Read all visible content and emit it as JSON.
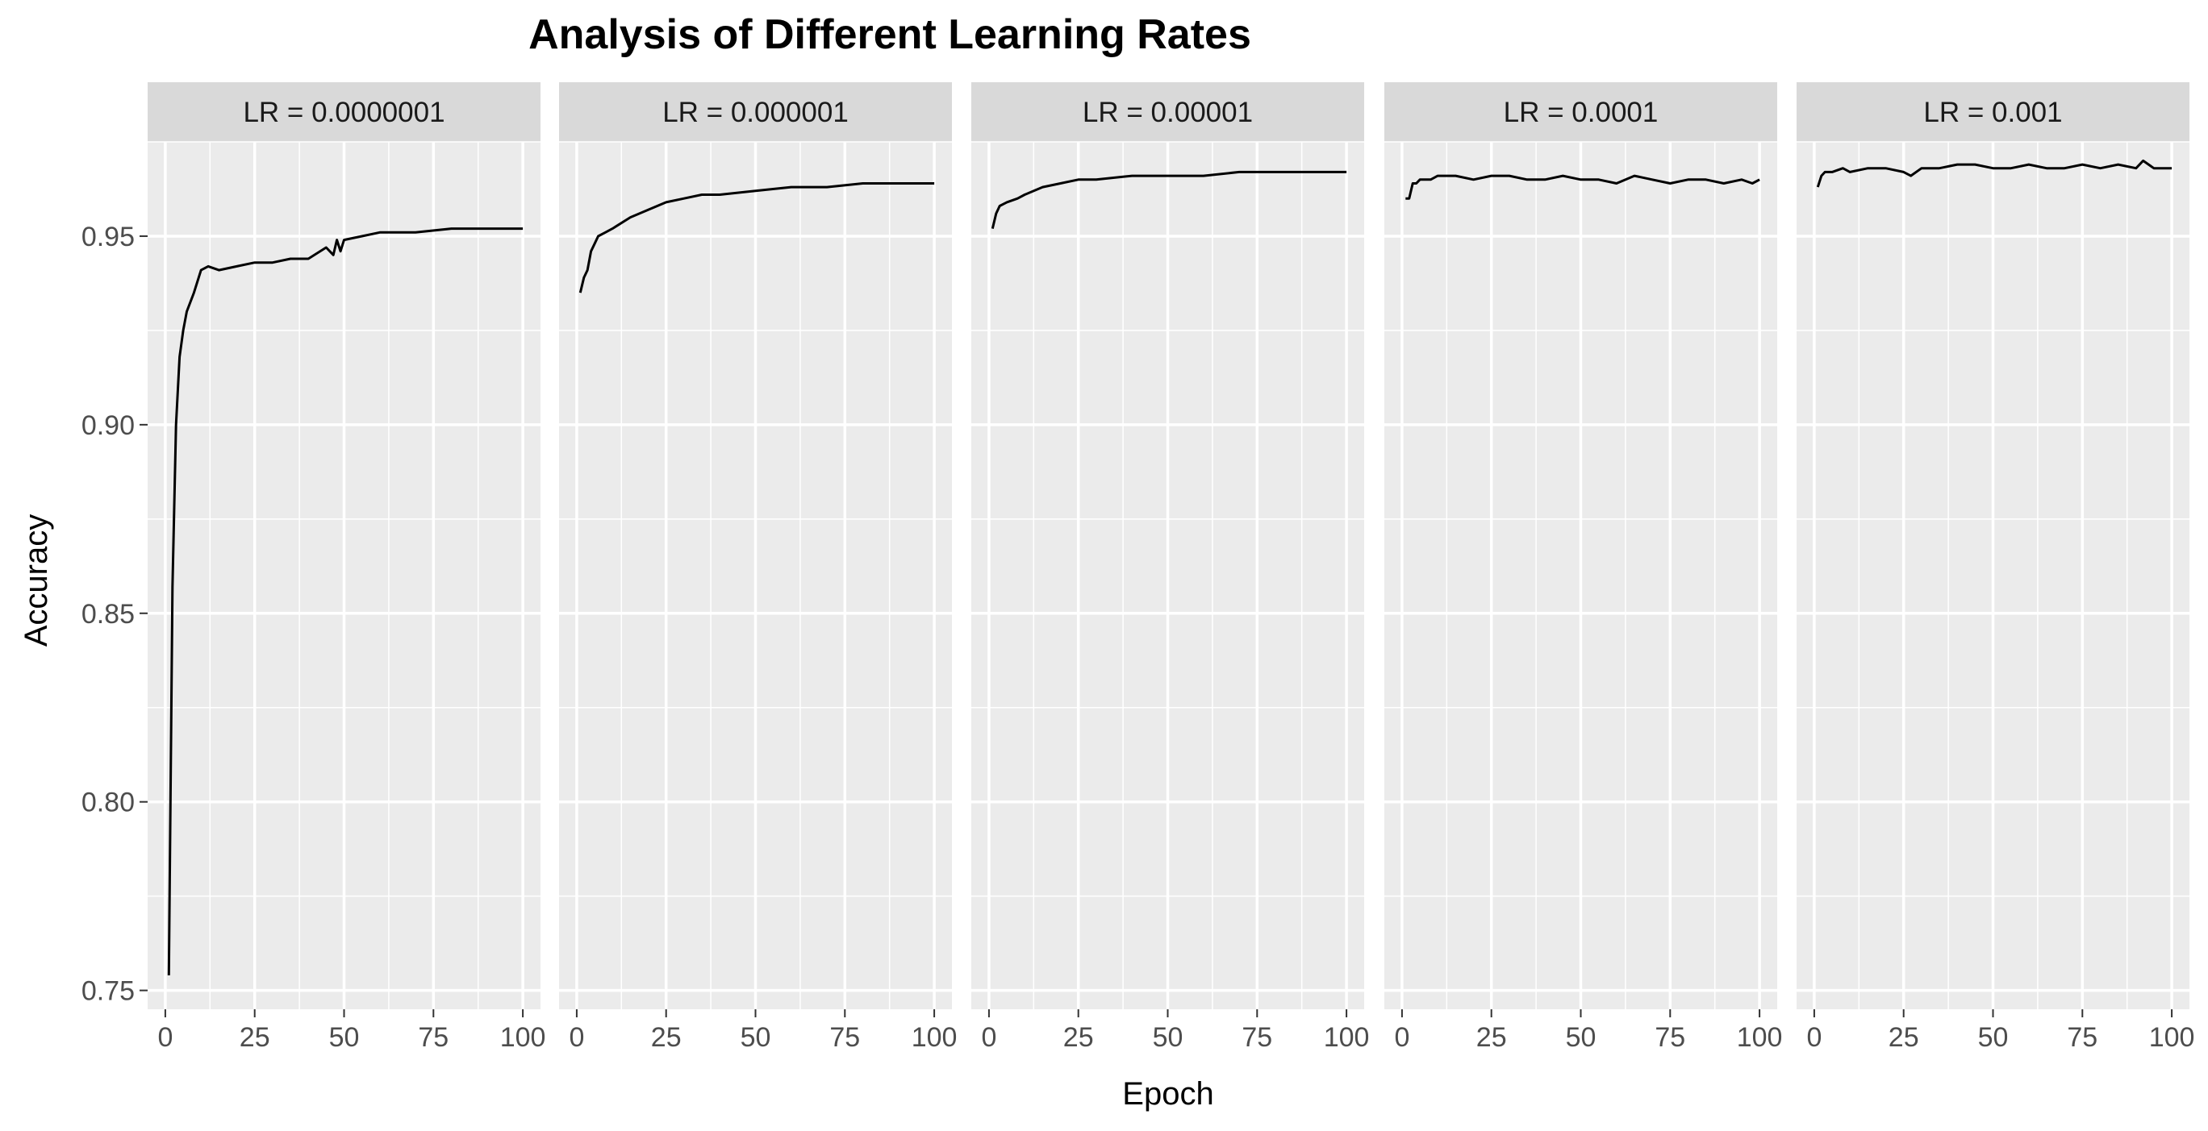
{
  "chart_data": {
    "type": "line",
    "title": "Analysis of Different Learning Rates",
    "xlabel": "Epoch",
    "ylabel": "Accuracy",
    "xlim": [
      0,
      100
    ],
    "ylim": [
      0.745,
      0.975
    ],
    "x_ticks": [
      "0",
      "25",
      "50",
      "75",
      "100"
    ],
    "y_ticks": [
      "0.75",
      "0.80",
      "0.85",
      "0.90",
      "0.95"
    ],
    "grid": true,
    "facets": [
      {
        "label": "LR = 0.0000001",
        "x": [
          1,
          2,
          3,
          4,
          5,
          6,
          8,
          10,
          12,
          15,
          20,
          25,
          30,
          35,
          40,
          45,
          47,
          48,
          49,
          50,
          55,
          60,
          70,
          80,
          90,
          95,
          100
        ],
        "y": [
          0.754,
          0.857,
          0.9,
          0.918,
          0.925,
          0.93,
          0.935,
          0.941,
          0.942,
          0.941,
          0.942,
          0.943,
          0.943,
          0.944,
          0.944,
          0.947,
          0.945,
          0.949,
          0.946,
          0.949,
          0.95,
          0.951,
          0.951,
          0.952,
          0.952,
          0.952,
          0.952
        ]
      },
      {
        "label": "LR = 0.000001",
        "x": [
          1,
          2,
          3,
          4,
          5,
          6,
          8,
          10,
          15,
          20,
          25,
          30,
          35,
          40,
          50,
          60,
          70,
          80,
          90,
          100
        ],
        "y": [
          0.935,
          0.939,
          0.941,
          0.946,
          0.948,
          0.95,
          0.951,
          0.952,
          0.955,
          0.957,
          0.959,
          0.96,
          0.961,
          0.961,
          0.962,
          0.963,
          0.963,
          0.964,
          0.964,
          0.964
        ]
      },
      {
        "label": "LR = 0.00001",
        "x": [
          1,
          2,
          3,
          5,
          8,
          10,
          15,
          20,
          25,
          30,
          40,
          50,
          60,
          70,
          80,
          90,
          95,
          100
        ],
        "y": [
          0.952,
          0.956,
          0.958,
          0.959,
          0.96,
          0.961,
          0.963,
          0.964,
          0.965,
          0.965,
          0.966,
          0.966,
          0.966,
          0.967,
          0.967,
          0.967,
          0.967,
          0.967
        ]
      },
      {
        "label": "LR = 0.0001",
        "x": [
          1,
          2,
          3,
          4,
          5,
          8,
          10,
          15,
          20,
          25,
          30,
          35,
          40,
          45,
          50,
          55,
          60,
          65,
          70,
          75,
          80,
          85,
          90,
          95,
          98,
          100
        ],
        "y": [
          0.96,
          0.96,
          0.964,
          0.964,
          0.965,
          0.965,
          0.966,
          0.966,
          0.965,
          0.966,
          0.966,
          0.965,
          0.965,
          0.966,
          0.965,
          0.965,
          0.964,
          0.966,
          0.965,
          0.964,
          0.965,
          0.965,
          0.964,
          0.965,
          0.964,
          0.965
        ]
      },
      {
        "label": "LR = 0.001",
        "x": [
          1,
          2,
          3,
          5,
          8,
          10,
          15,
          20,
          25,
          27,
          30,
          35,
          40,
          45,
          50,
          55,
          60,
          65,
          70,
          75,
          80,
          85,
          90,
          92,
          95,
          100
        ],
        "y": [
          0.963,
          0.966,
          0.967,
          0.967,
          0.968,
          0.967,
          0.968,
          0.968,
          0.967,
          0.966,
          0.968,
          0.968,
          0.969,
          0.969,
          0.968,
          0.968,
          0.969,
          0.968,
          0.968,
          0.969,
          0.968,
          0.969,
          0.968,
          0.97,
          0.968,
          0.968
        ]
      }
    ]
  }
}
